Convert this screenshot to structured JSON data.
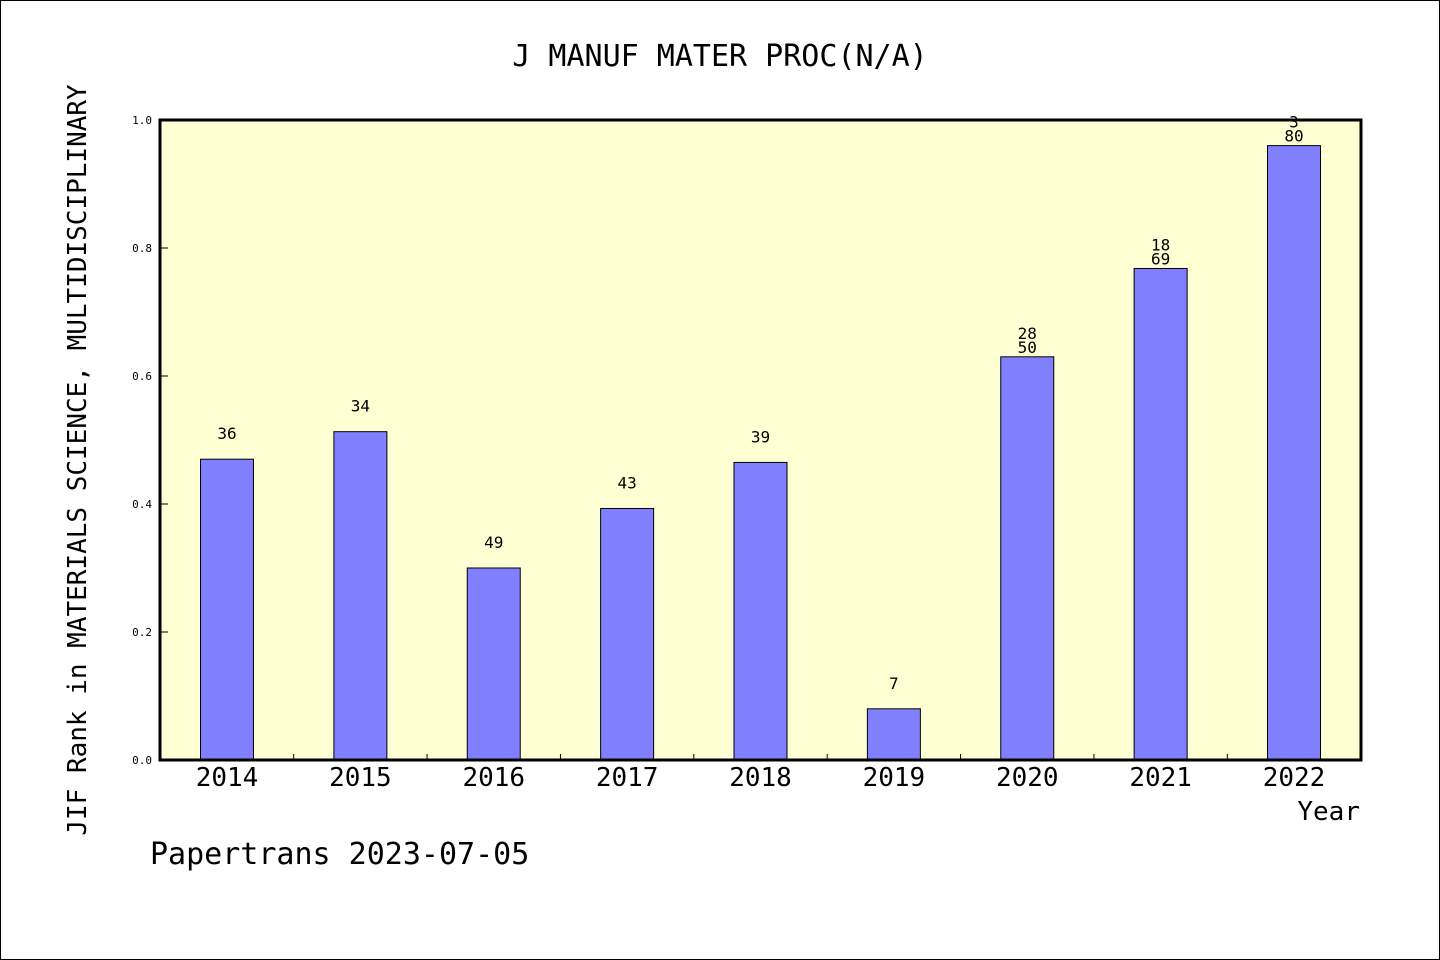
{
  "chart_data": {
    "type": "bar",
    "title": "J MANUF MATER PROC(N/A)",
    "xlabel": "Year",
    "ylabel": "JIF Rank in MATERIALS SCIENCE, MULTIDISCIPLINARY",
    "categories": [
      "2014",
      "2015",
      "2016",
      "2017",
      "2018",
      "2019",
      "2020",
      "2021",
      "2022"
    ],
    "values": [
      0.47,
      0.513,
      0.3,
      0.393,
      0.465,
      0.08,
      0.63,
      0.768,
      0.96
    ],
    "data_labels": [
      [
        "36"
      ],
      [
        "34"
      ],
      [
        "49"
      ],
      [
        "43"
      ],
      [
        "39"
      ],
      [
        "7"
      ],
      [
        "28",
        "50"
      ],
      [
        "18",
        "69"
      ],
      [
        "3",
        "80"
      ]
    ],
    "ylim": [
      0,
      1.0
    ],
    "yticks": [
      "0.0",
      "0.2",
      "0.4",
      "0.6",
      "0.8",
      "1.0"
    ],
    "grid": false,
    "plot_background": "#ffffd4",
    "bar_color": "#8080ff"
  },
  "footer": "Papertrans 2023-07-05"
}
